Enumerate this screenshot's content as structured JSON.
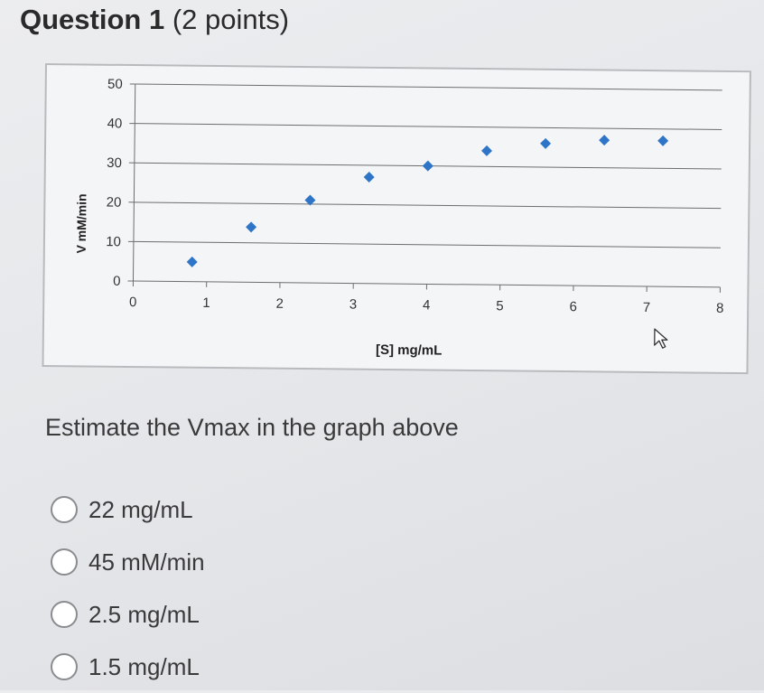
{
  "question": {
    "number_label": "Question 1",
    "points_label": "(2 points)",
    "prompt": "Estimate the Vmax in the graph above"
  },
  "options": [
    {
      "label": "22 mg/mL"
    },
    {
      "label": "45 mM/min"
    },
    {
      "label": "2.5 mg/mL"
    },
    {
      "label": "1.5 mg/mL"
    }
  ],
  "chart_data": {
    "type": "scatter",
    "title": "",
    "xlabel": "[S] mg/mL",
    "ylabel": "V mM/min",
    "xlim": [
      0,
      8
    ],
    "ylim": [
      0,
      50
    ],
    "x_ticks": [
      "0",
      "1",
      "2",
      "3",
      "4",
      "5",
      "6",
      "7",
      "8"
    ],
    "y_ticks": [
      "0",
      "10",
      "20",
      "30",
      "40",
      "50"
    ],
    "grid": "horizontal",
    "marker_color": "#2e75c8",
    "series": [
      {
        "x": [
          0.8,
          1.6,
          2.4,
          3.2,
          4.0,
          4.8,
          5.6,
          6.4,
          7.2
        ],
        "y": [
          5,
          14,
          21,
          27,
          30,
          34,
          36,
          37,
          37
        ]
      }
    ]
  },
  "cursor": {
    "icon": "arrow-cursor-icon"
  }
}
